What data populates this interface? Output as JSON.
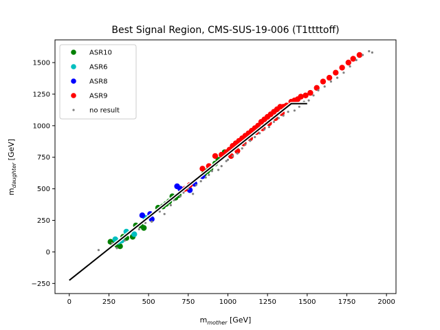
{
  "chart_data": {
    "type": "scatter",
    "title": "Best Signal Region, CMS-SUS-19-006 (T1ttttoff)",
    "xlabel": {
      "main": "m",
      "sub": "mother",
      "unit": " [GeV]"
    },
    "ylabel": {
      "main": "m",
      "sub": "daughter",
      "unit": " [GeV]"
    },
    "xlim": [
      -90,
      2060
    ],
    "ylim": [
      -330,
      1680
    ],
    "xticks": [
      0,
      250,
      500,
      750,
      1000,
      1250,
      1500,
      1750,
      2000
    ],
    "yticks": [
      -250,
      0,
      250,
      500,
      750,
      1000,
      1250,
      1500
    ],
    "legend_position": "top-left",
    "series": [
      {
        "name": "ASR10",
        "color": "#008000",
        "marker": "circle-large",
        "points": [
          [
            285,
            75
          ],
          [
            300,
            55
          ],
          [
            320,
            45
          ],
          [
            340,
            120
          ],
          [
            360,
            110
          ],
          [
            400,
            120
          ],
          [
            420,
            210
          ],
          [
            450,
            210
          ],
          [
            470,
            190
          ],
          [
            560,
            350
          ],
          [
            590,
            360
          ],
          [
            610,
            380
          ],
          [
            630,
            400
          ],
          [
            650,
            440
          ],
          [
            670,
            430
          ],
          [
            690,
            450
          ],
          [
            850,
            620
          ],
          [
            870,
            640
          ],
          [
            890,
            660
          ],
          [
            920,
            700
          ],
          [
            940,
            730
          ],
          [
            980,
            790
          ],
          [
            260,
            80
          ]
        ]
      },
      {
        "name": "ASR6",
        "color": "#00bfbf",
        "marker": "circle-large",
        "points": [
          [
            290,
            100
          ],
          [
            330,
            90
          ],
          [
            360,
            160
          ],
          [
            480,
            270
          ],
          [
            410,
            140
          ],
          [
            310,
            80
          ]
        ]
      },
      {
        "name": "ASR8",
        "color": "#0000ff",
        "marker": "circle-large",
        "points": [
          [
            460,
            290
          ],
          [
            520,
            260
          ],
          [
            680,
            520
          ],
          [
            700,
            500
          ],
          [
            760,
            490
          ],
          [
            790,
            540
          ],
          [
            840,
            600
          ],
          [
            510,
            300
          ]
        ]
      },
      {
        "name": "ASR9",
        "color": "#ff0000",
        "marker": "circle-large",
        "points": [
          [
            730,
            500
          ],
          [
            760,
            530
          ],
          [
            840,
            660
          ],
          [
            880,
            680
          ],
          [
            920,
            760
          ],
          [
            960,
            770
          ],
          [
            990,
            790
          ],
          [
            1010,
            810
          ],
          [
            1030,
            840
          ],
          [
            1050,
            860
          ],
          [
            1070,
            880
          ],
          [
            1090,
            900
          ],
          [
            1110,
            920
          ],
          [
            1130,
            940
          ],
          [
            1150,
            960
          ],
          [
            1170,
            980
          ],
          [
            1190,
            1000
          ],
          [
            1210,
            1030
          ],
          [
            1230,
            1050
          ],
          [
            1250,
            1070
          ],
          [
            1270,
            1090
          ],
          [
            1290,
            1110
          ],
          [
            1310,
            1130
          ],
          [
            1330,
            1150
          ],
          [
            1350,
            1150
          ],
          [
            1370,
            1160
          ],
          [
            1400,
            1190
          ],
          [
            1420,
            1200
          ],
          [
            1440,
            1210
          ],
          [
            1460,
            1230
          ],
          [
            1490,
            1240
          ],
          [
            1520,
            1260
          ],
          [
            1560,
            1300
          ],
          [
            1600,
            1350
          ],
          [
            1640,
            1380
          ],
          [
            1680,
            1420
          ],
          [
            1720,
            1460
          ],
          [
            1760,
            1500
          ],
          [
            1790,
            1530
          ],
          [
            1830,
            1560
          ],
          [
            1020,
            760
          ],
          [
            1060,
            800
          ],
          [
            1100,
            860
          ],
          [
            1140,
            900
          ],
          [
            1180,
            950
          ],
          [
            1220,
            980
          ],
          [
            1260,
            1020
          ],
          [
            1300,
            1060
          ],
          [
            1340,
            1100
          ]
        ]
      },
      {
        "name": "no result",
        "color": "#808080",
        "marker": "dot-small",
        "points": [
          [
            185,
            15
          ],
          [
            270,
            70
          ],
          [
            300,
            30
          ],
          [
            350,
            90
          ],
          [
            390,
            170
          ],
          [
            440,
            180
          ],
          [
            480,
            230
          ],
          [
            520,
            240
          ],
          [
            570,
            320
          ],
          [
            600,
            300
          ],
          [
            640,
            370
          ],
          [
            660,
            410
          ],
          [
            700,
            440
          ],
          [
            720,
            470
          ],
          [
            750,
            500
          ],
          [
            780,
            460
          ],
          [
            800,
            530
          ],
          [
            830,
            560
          ],
          [
            860,
            590
          ],
          [
            880,
            610
          ],
          [
            900,
            640
          ],
          [
            940,
            650
          ],
          [
            960,
            680
          ],
          [
            990,
            720
          ],
          [
            1000,
            730
          ],
          [
            1030,
            760
          ],
          [
            1060,
            780
          ],
          [
            1090,
            820
          ],
          [
            1110,
            850
          ],
          [
            1140,
            880
          ],
          [
            1170,
            910
          ],
          [
            1200,
            940
          ],
          [
            1230,
            970
          ],
          [
            1260,
            990
          ],
          [
            1290,
            1030
          ],
          [
            1320,
            1060
          ],
          [
            1350,
            1080
          ],
          [
            1380,
            1110
          ],
          [
            1420,
            1120
          ],
          [
            1450,
            1150
          ],
          [
            1480,
            1190
          ],
          [
            1510,
            1200
          ],
          [
            1540,
            1240
          ],
          [
            1570,
            1280
          ],
          [
            1610,
            1310
          ],
          [
            1650,
            1350
          ],
          [
            1690,
            1380
          ],
          [
            1730,
            1420
          ],
          [
            1770,
            1470
          ],
          [
            1810,
            1520
          ],
          [
            1850,
            1560
          ],
          [
            1890,
            1590
          ],
          [
            1910,
            1580
          ]
        ]
      }
    ],
    "line": {
      "color": "#000000",
      "points": [
        [
          0,
          -225
        ],
        [
          1400,
          1175
        ],
        [
          1500,
          1175
        ]
      ]
    }
  }
}
